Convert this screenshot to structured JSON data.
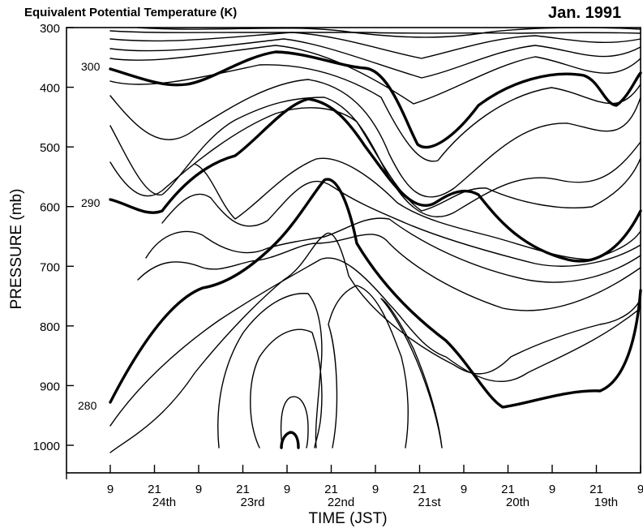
{
  "chart_data": {
    "type": "contour",
    "title": "Equivalent Potential Temperature (K)",
    "date_label": "Jan. 1991",
    "xlabel": "TIME (JST)",
    "ylabel": "PRESSURE (mb)",
    "ylim": [
      1000,
      300
    ],
    "y_ticks": [
      "300",
      "400",
      "500",
      "600",
      "700",
      "800",
      "900",
      "1000"
    ],
    "x_hour_ticks": [
      "9",
      "21",
      "9",
      "21",
      "9",
      "21",
      "9",
      "21",
      "9",
      "21",
      "9",
      "21",
      "9"
    ],
    "x_day_labels": [
      "24th",
      "23rd",
      "22nd",
      "21st",
      "20th",
      "19th"
    ],
    "contour_labels": [
      "300",
      "290",
      "280"
    ],
    "bold_isotherms_K": [
      280,
      290,
      300
    ],
    "contour_interval_K": 2
  },
  "colors": {
    "line": "#000000",
    "background": "#ffffff"
  }
}
